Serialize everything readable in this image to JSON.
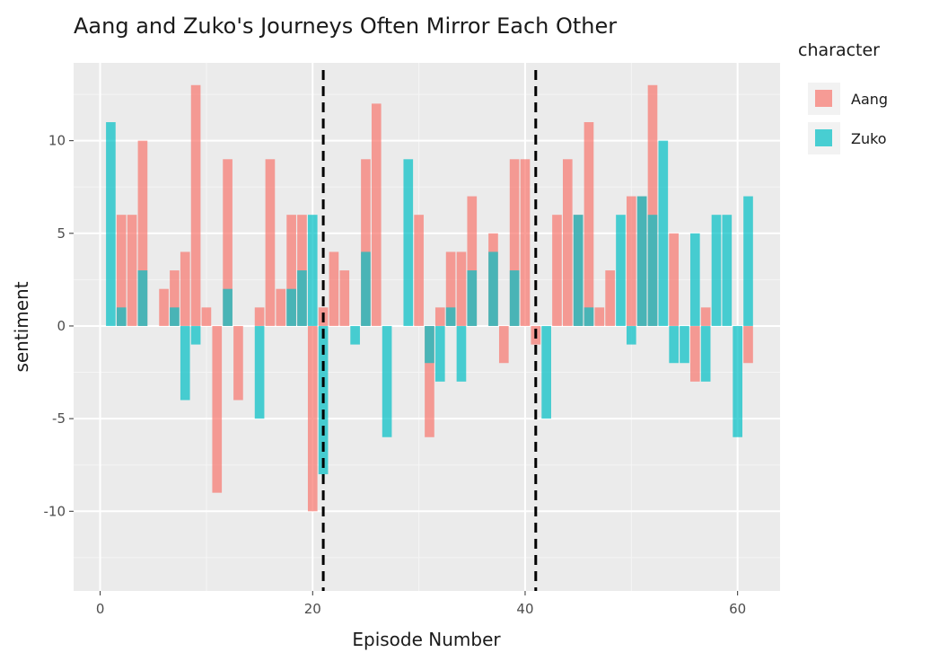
{
  "chart_data": {
    "type": "bar",
    "title": "Aang and Zuko's Journeys Often Mirror Each Other",
    "xlabel": "Episode Number",
    "ylabel": "sentiment",
    "xlim": [
      -2.5,
      64
    ],
    "ylim": [
      -14.3,
      14.2
    ],
    "x_ticks": [
      0,
      20,
      40,
      60
    ],
    "y_ticks": [
      -10,
      -5,
      0,
      5,
      10
    ],
    "grid": true,
    "legend": {
      "title": "character",
      "position": "right"
    },
    "reference_lines": [
      21,
      41
    ],
    "bar_mode": "overlapping",
    "series": [
      {
        "name": "Aang",
        "color": "#F8766D",
        "x": [
          2,
          3,
          4,
          6,
          7,
          8,
          9,
          10,
          11,
          12,
          13,
          15,
          16,
          17,
          18,
          19,
          20,
          21,
          22,
          23,
          25,
          26,
          30,
          31,
          32,
          33,
          34,
          35,
          37,
          38,
          39,
          40,
          41,
          43,
          44,
          45,
          46,
          47,
          48,
          50,
          51,
          52,
          54,
          56,
          57,
          61
        ],
        "values": [
          6,
          6,
          10,
          2,
          3,
          4,
          13,
          1,
          -9,
          9,
          -4,
          1,
          9,
          2,
          6,
          6,
          -10,
          1,
          4,
          3,
          9,
          12,
          6,
          -6,
          1,
          4,
          4,
          7,
          5,
          -2,
          9,
          9,
          -1,
          6,
          9,
          6,
          11,
          1,
          3,
          7,
          7,
          13,
          5,
          -3,
          1,
          -2
        ]
      },
      {
        "name": "Zuko",
        "color": "#00BFC4",
        "x": [
          1,
          2,
          4,
          7,
          8,
          9,
          12,
          15,
          18,
          19,
          20,
          21,
          24,
          25,
          27,
          29,
          31,
          32,
          33,
          34,
          35,
          37,
          39,
          42,
          45,
          46,
          49,
          50,
          51,
          52,
          53,
          54,
          55,
          56,
          57,
          58,
          59,
          60,
          61
        ],
        "values": [
          11,
          1,
          3,
          1,
          -4,
          -1,
          2,
          -5,
          2,
          3,
          6,
          -8,
          -1,
          4,
          -6,
          9,
          -2,
          -3,
          1,
          -3,
          3,
          4,
          3,
          -5,
          6,
          1,
          6,
          -1,
          7,
          6,
          10,
          -2,
          -2,
          5,
          -3,
          6,
          6,
          -6,
          7
        ]
      }
    ]
  }
}
